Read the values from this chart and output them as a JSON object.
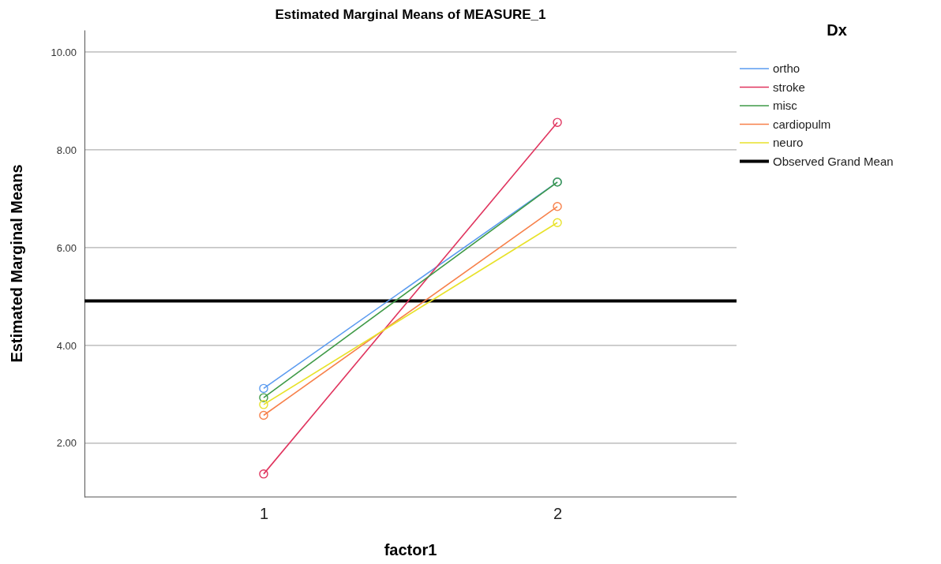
{
  "chart_data": {
    "type": "line",
    "title": "Estimated Marginal Means of MEASURE_1",
    "xlabel": "factor1",
    "ylabel": "Estimated Marginal Means",
    "legend_title": "Dx",
    "categories": [
      "1",
      "2"
    ],
    "series": [
      {
        "name": "ortho",
        "color": "#5b9bf0",
        "values": [
          3.12,
          7.34
        ]
      },
      {
        "name": "stroke",
        "color": "#e0345e",
        "values": [
          1.37,
          8.56
        ]
      },
      {
        "name": "misc",
        "color": "#3f9a47",
        "values": [
          2.93,
          7.34
        ]
      },
      {
        "name": "cardiopulm",
        "color": "#f7804a",
        "values": [
          2.57,
          6.84
        ]
      },
      {
        "name": "neuro",
        "color": "#e8e22a",
        "values": [
          2.79,
          6.51
        ]
      }
    ],
    "ref_lines": [
      {
        "axis": "y",
        "value": 4.91,
        "label": "Observed Grand Mean",
        "color": "#000000"
      }
    ],
    "ylim": [
      0.9,
      10.45
    ],
    "yticks": [
      {
        "value": 2,
        "label": "2.00"
      },
      {
        "value": 4,
        "label": "4.00"
      },
      {
        "value": 6,
        "label": "6.00"
      },
      {
        "value": 8,
        "label": "8.00"
      },
      {
        "value": 10,
        "label": "10.00"
      }
    ],
    "grid": "y",
    "legend": "top right",
    "marker": "circle",
    "line_style": "solid"
  }
}
